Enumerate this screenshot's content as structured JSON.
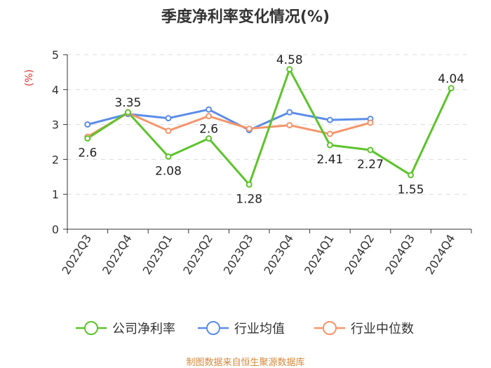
{
  "title": "季度净利率变化情况(%)",
  "source": "制图数据来自恒生聚源数据库",
  "chart_data": {
    "type": "line",
    "title": "季度净利率变化情况(%)",
    "ylabel": "(%)",
    "xlabel": "",
    "ylim": [
      0,
      5
    ],
    "yticks": [
      0,
      1,
      2,
      3,
      4,
      5
    ],
    "grid": true,
    "legend_position": "bottom",
    "categories": [
      "2022Q3",
      "2022Q4",
      "2023Q1",
      "2023Q2",
      "2023Q3",
      "2023Q4",
      "2024Q1",
      "2024Q2",
      "2024Q3",
      "2024Q4"
    ],
    "series": [
      {
        "name": "公司净利率",
        "color": "#5cc42a",
        "values": [
          2.6,
          3.35,
          2.08,
          2.6,
          1.28,
          4.58,
          2.41,
          2.27,
          1.55,
          4.04
        ],
        "labels": [
          "2.6",
          "3.35",
          "2.08",
          "2.6",
          "1.28",
          "4.58",
          "2.41",
          "2.27",
          "1.55",
          "4.04"
        ]
      },
      {
        "name": "行业均值",
        "color": "#5b8ce8",
        "values": [
          3.0,
          3.3,
          3.18,
          3.43,
          2.84,
          3.35,
          3.13,
          3.16,
          null,
          null
        ]
      },
      {
        "name": "行业中位数",
        "color": "#f5956a",
        "values": [
          2.65,
          3.33,
          2.82,
          3.24,
          2.88,
          2.98,
          2.73,
          3.05,
          null,
          null
        ]
      }
    ]
  }
}
